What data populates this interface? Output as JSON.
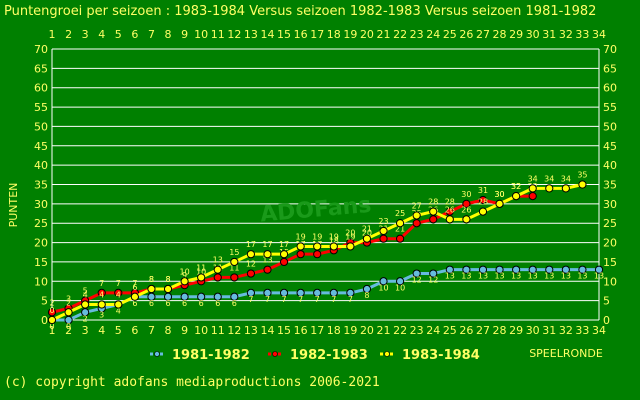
{
  "title": "Puntengroei per seizoen : 1983-1984 Versus seizoen 1982-1983 Versus seizoen 1981-1982",
  "copyright": "(c) copyright adofans mediaproductions 2006-2021",
  "watermark": "ADOFans",
  "colors": {
    "background": "#008000",
    "text": "#ffff66",
    "grid": "#ffffff",
    "s1981": "#66bbdd",
    "s1982": "#ff0000",
    "s1983": "#ffff00"
  },
  "chart_data": {
    "type": "line",
    "ylabel": "PUNTEN",
    "xlabel": "SPEELRONDE",
    "ylim": [
      0,
      70
    ],
    "yticks": [
      0,
      5,
      10,
      15,
      20,
      25,
      30,
      35,
      40,
      45,
      50,
      55,
      60,
      65,
      70
    ],
    "x": [
      1,
      2,
      3,
      4,
      5,
      6,
      7,
      8,
      9,
      10,
      11,
      12,
      13,
      14,
      15,
      16,
      17,
      18,
      19,
      20,
      21,
      22,
      23,
      24,
      25,
      26,
      27,
      28,
      29,
      30,
      31,
      32,
      33,
      34
    ],
    "grid": true,
    "legend_position": "bottom",
    "series": [
      {
        "name": "1981-1982",
        "color": "#66bbdd",
        "values": [
          0,
          0,
          2,
          3,
          4,
          6,
          6,
          6,
          6,
          6,
          6,
          6,
          7,
          7,
          7,
          7,
          7,
          7,
          7,
          8,
          10,
          10,
          12,
          12,
          13,
          13,
          13,
          13,
          13,
          13,
          13,
          13,
          13,
          13
        ]
      },
      {
        "name": "1982-1983",
        "color": "#ff0000",
        "values": [
          2,
          3,
          5,
          7,
          7,
          7,
          8,
          8,
          9,
          10,
          11,
          11,
          12,
          13,
          15,
          17,
          17,
          18,
          20,
          20,
          21,
          21,
          25,
          26,
          28,
          30,
          31,
          30,
          32,
          32,
          null,
          null,
          null,
          null
        ]
      },
      {
        "name": "1983-1984",
        "color": "#ffff00",
        "values": [
          0,
          2,
          4,
          4,
          4,
          6,
          8,
          8,
          10,
          11,
          13,
          15,
          17,
          17,
          17,
          19,
          19,
          19,
          19,
          21,
          23,
          25,
          27,
          28,
          26,
          26,
          28,
          30,
          32,
          34,
          34,
          34,
          35,
          null
        ]
      }
    ]
  }
}
